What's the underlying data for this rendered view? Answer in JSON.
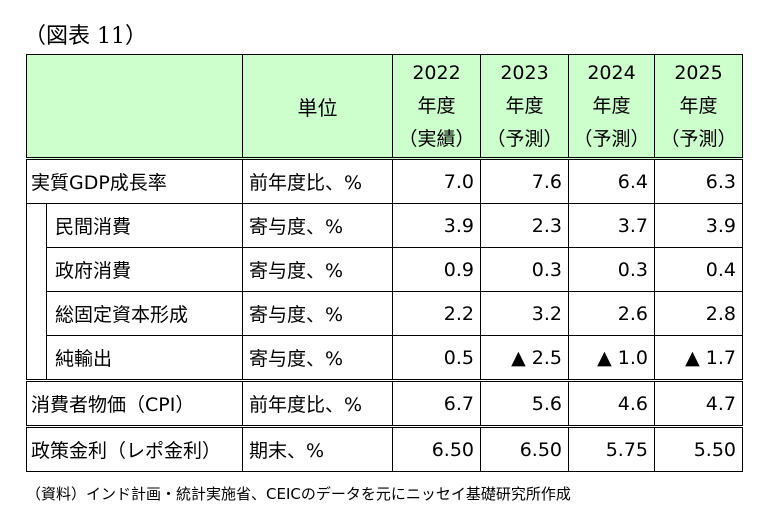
{
  "figure_label": "（図表 11）",
  "header": {
    "unit": "単位",
    "years": [
      {
        "year": "2022",
        "suffix": "年度",
        "status": "（実績）"
      },
      {
        "year": "2023",
        "suffix": "年度",
        "status": "（予測）"
      },
      {
        "year": "2024",
        "suffix": "年度",
        "status": "（予測）"
      },
      {
        "year": "2025",
        "suffix": "年度",
        "status": "（予測）"
      }
    ]
  },
  "rows": [
    {
      "label": "実質GDP成長率",
      "unit": "前年度比、%",
      "values": [
        "7.0",
        "7.6",
        "6.4",
        "6.3"
      ]
    },
    {
      "label": "民間消費",
      "unit": "寄与度、%",
      "values": [
        "3.9",
        "2.3",
        "3.7",
        "3.9"
      ]
    },
    {
      "label": "政府消費",
      "unit": "寄与度、%",
      "values": [
        "0.9",
        "0.3",
        "0.3",
        "0.4"
      ]
    },
    {
      "label": "総固定資本形成",
      "unit": "寄与度、%",
      "values": [
        "2.2",
        "3.2",
        "2.6",
        "2.8"
      ]
    },
    {
      "label": "純輸出",
      "unit": "寄与度、%",
      "values": [
        "0.5",
        "▲ 2.5",
        "▲ 1.0",
        "▲ 1.7"
      ]
    },
    {
      "label": "消費者物価（CPI）",
      "unit": "前年度比、%",
      "values": [
        "6.7",
        "5.6",
        "4.6",
        "4.7"
      ]
    },
    {
      "label": "政策金利（レポ金利）",
      "unit": "期末、%",
      "values": [
        "6.50",
        "6.50",
        "5.75",
        "5.50"
      ]
    }
  ],
  "source": "（資料）インド計画・統計実施省、CEICのデータを元にニッセイ基礎研究所作成"
}
